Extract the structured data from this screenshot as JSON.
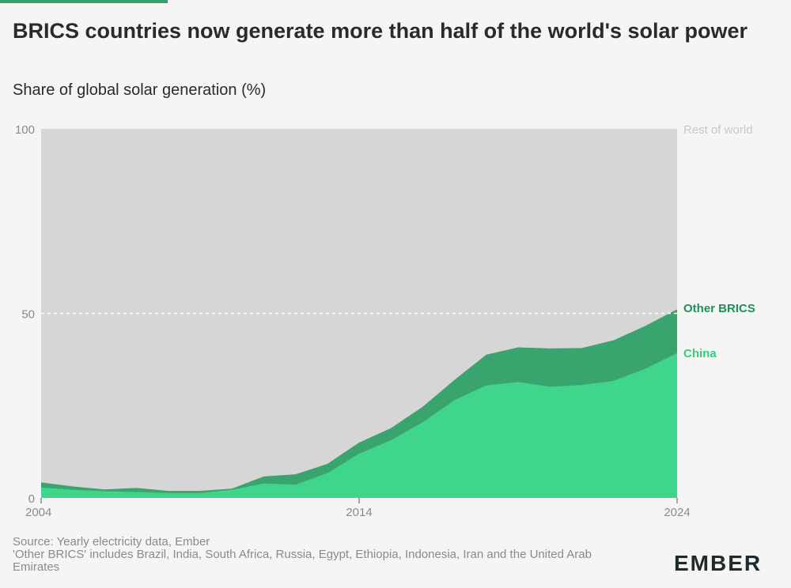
{
  "colors": {
    "accent": "#3a9e6e",
    "china": "#3fd68c",
    "other_brics": "#3aa46f",
    "rest_of_world": "#d6d6d6",
    "other_brics_label": "#1f8f55",
    "china_label": "#2ed07f",
    "rest_label": "#c8c8c8",
    "axis_text": "#8a8a8a"
  },
  "chart_data": {
    "type": "area",
    "title": "BRICS countries now generate more than half of the world's solar power",
    "subtitle": "Share of global solar generation (%)",
    "x": [
      2004,
      2005,
      2006,
      2007,
      2008,
      2009,
      2010,
      2011,
      2012,
      2013,
      2014,
      2015,
      2016,
      2017,
      2018,
      2019,
      2020,
      2021,
      2022,
      2023,
      2024
    ],
    "x_ticks": [
      "2004",
      "2014",
      "2024"
    ],
    "y_ticks": [
      "0",
      "50",
      "100"
    ],
    "ylim": [
      0,
      100
    ],
    "reference_line": 50,
    "series": [
      {
        "name": "China",
        "values": [
          2.8,
          2.2,
          1.8,
          1.6,
          1.3,
          1.3,
          2.2,
          3.9,
          3.6,
          6.7,
          12.0,
          15.6,
          20.5,
          26.5,
          30.5,
          31.4,
          30.1,
          30.6,
          31.7,
          35.0,
          39.2
        ]
      },
      {
        "name": "Other BRICS",
        "values": [
          1.4,
          0.9,
          0.5,
          1.1,
          0.6,
          0.6,
          0.3,
          1.9,
          2.8,
          2.5,
          3.0,
          3.3,
          4.2,
          5.5,
          8.3,
          9.4,
          10.4,
          10.0,
          11.0,
          11.6,
          11.9
        ]
      }
    ],
    "end_labels": {
      "rest": "Rest of world",
      "other": "Other BRICS",
      "china": "China"
    }
  },
  "footer": {
    "source": "Source: Yearly electricity data, Ember",
    "note": "'Other BRICS' includes Brazil, India, South Africa, Russia, Egypt, Ethiopia, Indonesia, Iran and the United Arab Emirates"
  },
  "logo": {
    "text": "EMBER"
  }
}
